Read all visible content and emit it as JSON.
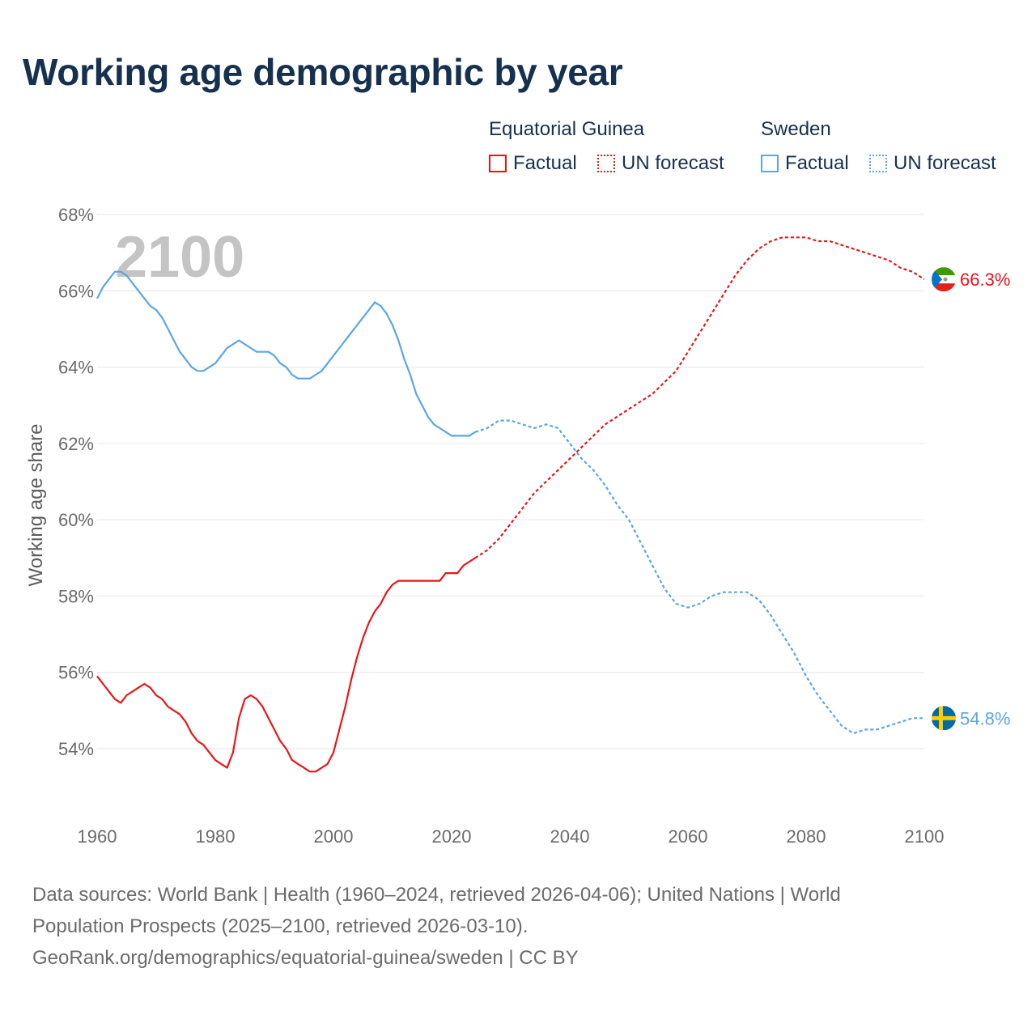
{
  "title": "Working age demographic by year",
  "legend": {
    "groups": [
      {
        "name": "Equatorial Guinea",
        "color": "#e8161b",
        "items": [
          {
            "label": "Factual",
            "style": "solid"
          },
          {
            "label": "UN forecast",
            "style": "dotted"
          }
        ]
      },
      {
        "name": "Sweden",
        "color": "#5ba6e3",
        "items": [
          {
            "label": "Factual",
            "style": "solid"
          },
          {
            "label": "UN forecast",
            "style": "dotted"
          }
        ]
      }
    ]
  },
  "year_overlay": "2100",
  "chart_data": {
    "type": "line",
    "title": "Working age demographic by year",
    "xlabel": "",
    "ylabel": "Working age share",
    "xlim": [
      1960,
      2100
    ],
    "ylim": [
      52.5,
      68
    ],
    "x_ticks": [
      "1960",
      "1980",
      "2000",
      "2020",
      "2040",
      "2060",
      "2080",
      "2100"
    ],
    "x_tick_values": [
      1960,
      1980,
      2000,
      2020,
      2040,
      2060,
      2080,
      2100
    ],
    "y_ticks": [
      "54%",
      "56%",
      "58%",
      "60%",
      "62%",
      "64%",
      "66%",
      "68%"
    ],
    "y_tick_values": [
      54,
      56,
      58,
      60,
      62,
      64,
      66,
      68
    ],
    "grid": true,
    "series": [
      {
        "name": "Equatorial Guinea",
        "color": "#e8161b",
        "end_label": "66.3%",
        "factual": {
          "x": [
            1960,
            1961,
            1962,
            1963,
            1964,
            1965,
            1966,
            1967,
            1968,
            1969,
            1970,
            1971,
            1972,
            1973,
            1974,
            1975,
            1976,
            1977,
            1978,
            1979,
            1980,
            1981,
            1982,
            1983,
            1984,
            1985,
            1986,
            1987,
            1988,
            1989,
            1990,
            1991,
            1992,
            1993,
            1994,
            1995,
            1996,
            1997,
            1998,
            1999,
            2000,
            2001,
            2002,
            2003,
            2004,
            2005,
            2006,
            2007,
            2008,
            2009,
            2010,
            2011,
            2012,
            2013,
            2014,
            2015,
            2016,
            2017,
            2018,
            2019,
            2020,
            2021,
            2022,
            2023,
            2024
          ],
          "y": [
            55.9,
            55.7,
            55.5,
            55.3,
            55.2,
            55.4,
            55.5,
            55.6,
            55.7,
            55.6,
            55.4,
            55.3,
            55.1,
            55.0,
            54.9,
            54.7,
            54.4,
            54.2,
            54.1,
            53.9,
            53.7,
            53.6,
            53.5,
            53.9,
            54.8,
            55.3,
            55.4,
            55.3,
            55.1,
            54.8,
            54.5,
            54.2,
            54.0,
            53.7,
            53.6,
            53.5,
            53.4,
            53.4,
            53.5,
            53.6,
            53.9,
            54.5,
            55.1,
            55.8,
            56.4,
            56.9,
            57.3,
            57.6,
            57.8,
            58.1,
            58.3,
            58.4,
            58.4,
            58.4,
            58.4,
            58.4,
            58.4,
            58.4,
            58.4,
            58.6,
            58.6,
            58.6,
            58.8,
            58.9,
            59.0
          ]
        },
        "forecast": {
          "x": [
            2024,
            2026,
            2028,
            2030,
            2032,
            2034,
            2036,
            2038,
            2040,
            2042,
            2044,
            2046,
            2048,
            2050,
            2052,
            2054,
            2056,
            2058,
            2060,
            2062,
            2064,
            2066,
            2068,
            2070,
            2072,
            2074,
            2076,
            2078,
            2080,
            2082,
            2084,
            2086,
            2088,
            2090,
            2092,
            2094,
            2096,
            2098,
            2100
          ],
          "y": [
            59.0,
            59.2,
            59.5,
            59.9,
            60.3,
            60.7,
            61.0,
            61.3,
            61.6,
            61.9,
            62.2,
            62.5,
            62.7,
            62.9,
            63.1,
            63.3,
            63.6,
            63.9,
            64.4,
            64.9,
            65.4,
            65.9,
            66.4,
            66.8,
            67.1,
            67.3,
            67.4,
            67.4,
            67.4,
            67.3,
            67.3,
            67.2,
            67.1,
            67.0,
            66.9,
            66.8,
            66.6,
            66.5,
            66.3
          ]
        }
      },
      {
        "name": "Sweden",
        "color": "#5ba6e3",
        "end_label": "54.8%",
        "factual": {
          "x": [
            1960,
            1961,
            1962,
            1963,
            1964,
            1965,
            1966,
            1967,
            1968,
            1969,
            1970,
            1971,
            1972,
            1973,
            1974,
            1975,
            1976,
            1977,
            1978,
            1979,
            1980,
            1981,
            1982,
            1983,
            1984,
            1985,
            1986,
            1987,
            1988,
            1989,
            1990,
            1991,
            1992,
            1993,
            1994,
            1995,
            1996,
            1997,
            1998,
            1999,
            2000,
            2001,
            2002,
            2003,
            2004,
            2005,
            2006,
            2007,
            2008,
            2009,
            2010,
            2011,
            2012,
            2013,
            2014,
            2015,
            2016,
            2017,
            2018,
            2019,
            2020,
            2021,
            2022,
            2023,
            2024
          ],
          "y": [
            65.8,
            66.1,
            66.3,
            66.5,
            66.5,
            66.4,
            66.2,
            66.0,
            65.8,
            65.6,
            65.5,
            65.3,
            65.0,
            64.7,
            64.4,
            64.2,
            64.0,
            63.9,
            63.9,
            64.0,
            64.1,
            64.3,
            64.5,
            64.6,
            64.7,
            64.6,
            64.5,
            64.4,
            64.4,
            64.4,
            64.3,
            64.1,
            64.0,
            63.8,
            63.7,
            63.7,
            63.7,
            63.8,
            63.9,
            64.1,
            64.3,
            64.5,
            64.7,
            64.9,
            65.1,
            65.3,
            65.5,
            65.7,
            65.6,
            65.4,
            65.1,
            64.7,
            64.2,
            63.8,
            63.3,
            63.0,
            62.7,
            62.5,
            62.4,
            62.3,
            62.2,
            62.2,
            62.2,
            62.2,
            62.3
          ]
        },
        "forecast": {
          "x": [
            2024,
            2026,
            2028,
            2030,
            2032,
            2034,
            2036,
            2038,
            2040,
            2042,
            2044,
            2046,
            2048,
            2050,
            2052,
            2054,
            2056,
            2058,
            2060,
            2062,
            2064,
            2066,
            2068,
            2070,
            2072,
            2074,
            2076,
            2078,
            2080,
            2082,
            2084,
            2086,
            2088,
            2090,
            2092,
            2094,
            2096,
            2098,
            2100
          ],
          "y": [
            62.3,
            62.4,
            62.6,
            62.6,
            62.5,
            62.4,
            62.5,
            62.4,
            62.0,
            61.6,
            61.3,
            60.9,
            60.4,
            60.0,
            59.4,
            58.8,
            58.2,
            57.8,
            57.7,
            57.8,
            58.0,
            58.1,
            58.1,
            58.1,
            57.9,
            57.5,
            57.0,
            56.5,
            55.9,
            55.4,
            55.0,
            54.6,
            54.4,
            54.5,
            54.5,
            54.6,
            54.7,
            54.8,
            54.8
          ]
        }
      }
    ]
  },
  "source": {
    "line1": "Data sources: World Bank | Health (1960–2024, retrieved 2026-04-06); United Nations | World",
    "line2": "Population Prospects (2025–2100, retrieved 2026-03-10).",
    "line3": "GeoRank.org/demographics/equatorial-guinea/sweden | CC BY"
  }
}
